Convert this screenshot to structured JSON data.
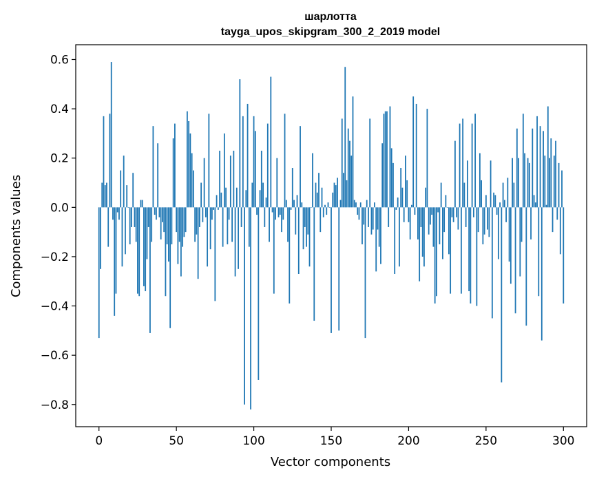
{
  "chart_data": {
    "type": "bar",
    "title": "шарлотта",
    "subtitle": "tayga_upos_skipgram_300_2_2019 model",
    "xlabel": "Vector components",
    "ylabel": "Components values",
    "xlim": [
      -15,
      315
    ],
    "ylim": [
      -0.89,
      0.66
    ],
    "xticks": [
      0,
      50,
      100,
      150,
      200,
      250,
      300
    ],
    "yticks": [
      -0.8,
      -0.6,
      -0.4,
      -0.2,
      0.0,
      0.2,
      0.4,
      0.6
    ],
    "xtick_labels": [
      "0",
      "50",
      "100",
      "150",
      "200",
      "250",
      "300"
    ],
    "ytick_labels": [
      "−0.8",
      "−0.6",
      "−0.4",
      "−0.2",
      "0.0",
      "0.2",
      "0.4",
      "0.6"
    ],
    "bar_color": "#1f77b4",
    "grid": false,
    "legend": "none",
    "values": [
      -0.53,
      -0.25,
      0.1,
      0.37,
      0.09,
      0.1,
      -0.16,
      0.38,
      0.59,
      -0.05,
      -0.44,
      -0.35,
      -0.02,
      -0.05,
      0.15,
      -0.24,
      0.21,
      -0.19,
      0.09,
      0.0,
      -0.15,
      -0.08,
      0.14,
      -0.08,
      -0.14,
      -0.35,
      -0.36,
      0.03,
      0.03,
      -0.32,
      -0.34,
      -0.21,
      -0.08,
      -0.51,
      -0.14,
      0.33,
      -0.03,
      -0.05,
      0.26,
      -0.04,
      -0.13,
      -0.06,
      -0.1,
      -0.36,
      -0.15,
      -0.22,
      -0.49,
      -0.15,
      0.28,
      0.34,
      -0.1,
      -0.23,
      -0.14,
      -0.28,
      -0.16,
      -0.12,
      -0.1,
      0.39,
      0.35,
      0.3,
      0.22,
      0.15,
      -0.14,
      -0.11,
      -0.29,
      -0.08,
      0.1,
      -0.06,
      0.2,
      -0.04,
      -0.24,
      0.38,
      -0.17,
      -0.05,
      -0.01,
      -0.38,
      0.05,
      -0.01,
      0.23,
      0.06,
      -0.16,
      0.3,
      0.08,
      -0.15,
      -0.05,
      0.21,
      -0.14,
      0.23,
      -0.28,
      0.08,
      -0.25,
      0.52,
      -0.08,
      0.37,
      -0.8,
      0.07,
      0.42,
      -0.16,
      -0.82,
      0.1,
      0.37,
      0.31,
      -0.03,
      -0.7,
      0.07,
      0.23,
      0.1,
      -0.08,
      0.04,
      0.34,
      -0.14,
      0.53,
      -0.02,
      -0.35,
      -0.05,
      0.2,
      -0.04,
      -0.03,
      -0.1,
      -0.05,
      0.38,
      0.03,
      -0.14,
      -0.39,
      -0.01,
      0.16,
      0.03,
      -0.11,
      0.05,
      -0.27,
      0.33,
      0.02,
      -0.17,
      -0.08,
      -0.16,
      -0.11,
      -0.24,
      0.0,
      0.22,
      -0.46,
      0.1,
      0.06,
      0.14,
      -0.1,
      0.08,
      -0.04,
      0.01,
      -0.03,
      0.02,
      0.0,
      -0.51,
      0.06,
      0.1,
      0.09,
      0.12,
      -0.5,
      0.03,
      0.36,
      0.14,
      0.57,
      0.11,
      0.32,
      0.27,
      0.21,
      0.45,
      0.03,
      0.02,
      -0.03,
      -0.05,
      0.02,
      -0.15,
      -0.07,
      -0.53,
      0.03,
      -0.08,
      0.36,
      -0.11,
      -0.09,
      0.02,
      -0.26,
      -0.09,
      -0.16,
      -0.23,
      0.26,
      0.38,
      0.39,
      0.39,
      -0.08,
      0.41,
      0.24,
      0.18,
      -0.27,
      -0.01,
      0.04,
      -0.24,
      0.16,
      0.08,
      -0.06,
      0.21,
      0.11,
      -0.06,
      -0.13,
      0.01,
      0.45,
      -0.03,
      0.42,
      -0.13,
      -0.3,
      -0.08,
      -0.2,
      -0.24,
      0.08,
      0.4,
      -0.11,
      -0.07,
      -0.03,
      -0.16,
      -0.39,
      -0.36,
      -0.02,
      -0.15,
      0.1,
      -0.21,
      -0.1,
      0.05,
      0.0,
      -0.19,
      -0.35,
      -0.04,
      -0.06,
      0.27,
      -0.04,
      -0.09,
      0.34,
      -0.35,
      0.36,
      0.1,
      -0.08,
      0.19,
      -0.34,
      -0.39,
      0.34,
      -0.04,
      0.38,
      -0.4,
      -0.1,
      0.22,
      0.11,
      -0.15,
      -0.11,
      0.05,
      -0.09,
      -0.12,
      0.19,
      -0.45,
      0.06,
      0.05,
      -0.03,
      -0.21,
      0.02,
      -0.71,
      0.1,
      0.03,
      -0.06,
      0.12,
      -0.22,
      -0.31,
      0.2,
      0.1,
      -0.43,
      0.32,
      0.2,
      -0.28,
      -0.14,
      0.38,
      0.22,
      -0.48,
      0.2,
      0.18,
      -0.13,
      0.32,
      0.05,
      0.02,
      0.37,
      -0.36,
      0.33,
      -0.54,
      0.31,
      0.21,
      0.01,
      0.41,
      0.2,
      0.28,
      -0.1,
      0.21,
      0.27,
      -0.05,
      0.18,
      -0.19,
      0.15,
      -0.39
    ]
  }
}
